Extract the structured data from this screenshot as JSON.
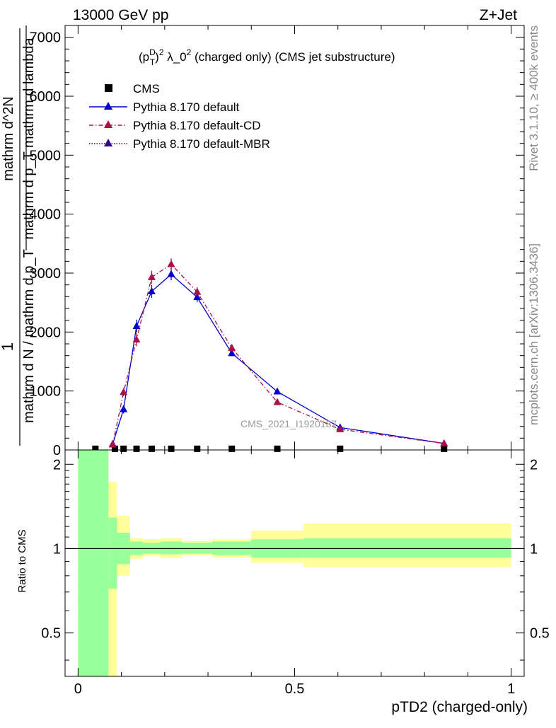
{
  "header": {
    "left": "13000 GeV pp",
    "right": "Z+Jet",
    "rivet_label": "Rivet 3.1.10, ≥ 400k events",
    "mcplots_label": "mcplots.cern.ch [arXiv:1306.3436]",
    "watermark": "CMS_2021_I1920187"
  },
  "chart_data": [
    {
      "type": "line",
      "title": "(p_T^D)^2 λ_0^2 (charged only) (CMS jet substructure)",
      "ylabel": "1 / mathrm d N / mathrm d p_T mathrm d^2N / mathrm d p_T mathrm d lambda",
      "ylabel_parts": {
        "numerator": "1",
        "denominator": "mathrm d N / mathrm d p_T",
        "inner_numerator": "mathrm d^2N",
        "inner_denominator": "mathrm d p_T mathrm d lambda"
      },
      "xlim": [
        -0.03,
        1.03
      ],
      "ylim": [
        0,
        7200
      ],
      "yticks": [
        0,
        1000,
        2000,
        3000,
        4000,
        5000,
        6000,
        7000
      ],
      "ytick_labels": [
        "0",
        "1000",
        "2000",
        "3000",
        "4000",
        "5000",
        "6000",
        "7000"
      ],
      "legend_position": "top-left",
      "series": [
        {
          "name": "CMS",
          "color": "#000000",
          "marker": "square",
          "x": [
            0.04,
            0.085,
            0.105,
            0.135,
            0.17,
            0.215,
            0.275,
            0.355,
            0.46,
            0.605,
            0.845
          ],
          "y": [
            8,
            8,
            8,
            8,
            8,
            8,
            8,
            8,
            8,
            8,
            8
          ]
        },
        {
          "name": "Pythia 8.170 default",
          "color": "#0000cc",
          "marker": "triangle",
          "line": "solid",
          "x": [
            0.08,
            0.105,
            0.135,
            0.17,
            0.215,
            0.275,
            0.355,
            0.46,
            0.605,
            0.845
          ],
          "y": [
            100,
            690,
            2100,
            2690,
            2980,
            2590,
            1640,
            990,
            380,
            110
          ],
          "err": [
            40,
            70,
            110,
            110,
            100,
            80,
            50,
            35,
            20,
            12
          ]
        },
        {
          "name": "Pythia 8.170 default-CD",
          "color": "#aa1144",
          "marker": "triangle",
          "line": "dashdot",
          "x": [
            0.08,
            0.105,
            0.135,
            0.17,
            0.215,
            0.275,
            0.355,
            0.46,
            0.605,
            0.845
          ],
          "y": [
            90,
            980,
            1870,
            2930,
            3150,
            2680,
            1730,
            810,
            350,
            110
          ],
          "err": [
            40,
            70,
            110,
            110,
            100,
            80,
            50,
            35,
            20,
            12
          ]
        },
        {
          "name": "Pythia 8.170 default-MBR",
          "color": "#330099",
          "marker": "triangle",
          "line": "dotted",
          "x": [],
          "y": []
        }
      ]
    },
    {
      "type": "area",
      "ylabel": "Ratio to CMS",
      "xlabel": "pTD2 (charged-only)",
      "xlim": [
        -0.03,
        1.03
      ],
      "xticks": [
        0,
        0.5,
        1
      ],
      "xtick_labels": [
        "0",
        "0.5",
        "1"
      ],
      "ylim": [
        0.35,
        2.25
      ],
      "yticks": [
        0.5,
        1,
        2
      ],
      "ytick_labels": [
        "0.5",
        "1",
        "2"
      ],
      "reference": 1,
      "bins": [
        0,
        0.07,
        0.09,
        0.12,
        0.15,
        0.19,
        0.24,
        0.31,
        0.4,
        0.52,
        1.0
      ],
      "band_stat": {
        "color": "#99ff99",
        "low": [
          0.0,
          0.72,
          0.88,
          0.95,
          0.96,
          0.955,
          0.96,
          0.95,
          0.93,
          0.93
        ],
        "high": [
          3.0,
          1.29,
          1.14,
          1.06,
          1.05,
          1.06,
          1.05,
          1.06,
          1.08,
          1.09
        ]
      },
      "band_total": {
        "color": "#ffff99",
        "low": [
          0.0,
          0.0,
          0.8,
          0.92,
          0.94,
          0.925,
          0.945,
          0.93,
          0.89,
          0.86
        ],
        "high": [
          3.0,
          1.73,
          1.31,
          1.09,
          1.08,
          1.09,
          1.065,
          1.08,
          1.16,
          1.23
        ]
      }
    }
  ]
}
